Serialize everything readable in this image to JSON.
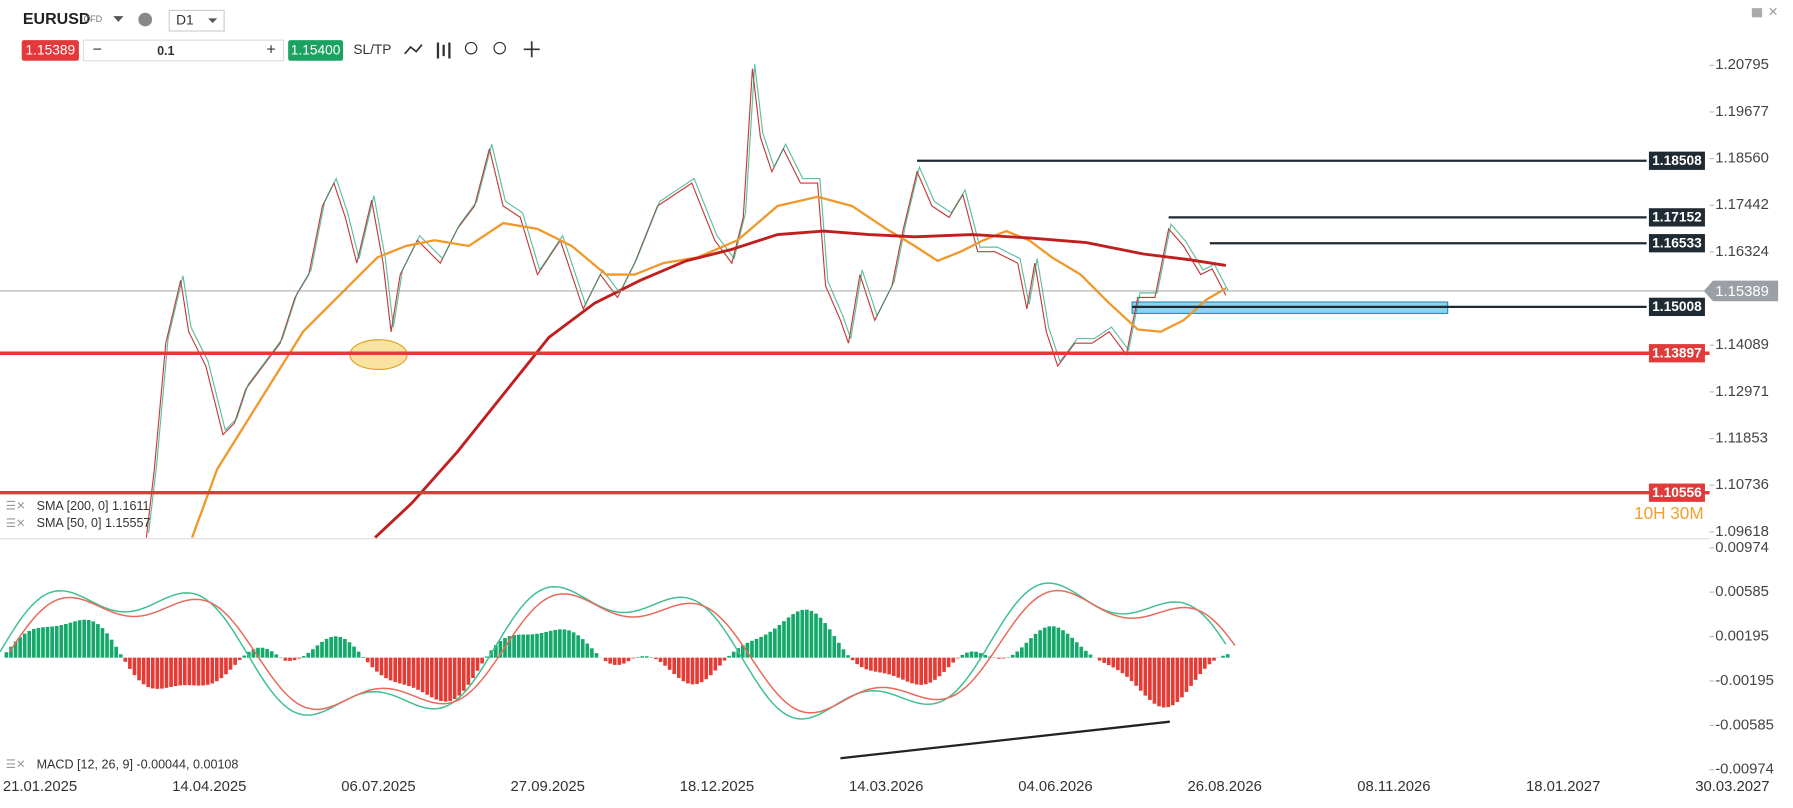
{
  "header": {
    "symbol": "EURUSD",
    "symbol_type": "CFD",
    "timeframe": "D1",
    "sell_price": "1.15389",
    "quantity": "0.1",
    "buy_price": "1.15400",
    "sltp": "SL/TP"
  },
  "price_axis": {
    "ylim": [
      1.09618,
      1.20795
    ],
    "yticks": [
      1.20795,
      1.19677,
      {
        "value": 1.1856,
        "label": "1.18560"
      },
      1.17442,
      1.16324,
      1.14089,
      1.12971,
      1.11853,
      1.10736,
      1.09618
    ]
  },
  "current_price": {
    "value": 1.15389,
    "label": "1.15389"
  },
  "levels": [
    {
      "value": 1.18508,
      "color": "#1f2a33"
    },
    {
      "value": 1.17152,
      "color": "#1f2a33"
    },
    {
      "value": 1.16533,
      "color": "#1f2a33"
    },
    {
      "value": 1.15008,
      "color": "#1f2a33"
    },
    {
      "value": 1.13897,
      "color": "#e03a3a"
    },
    {
      "value": 1.10556,
      "color": "#e03a3a"
    }
  ],
  "indicators": [
    "SMA [200, 0] 1.1611",
    "SMA [50, 0] 1.15557"
  ],
  "timer": "10H 30M",
  "macd": {
    "label": "MACD [12, 26, 9] -0.00044, 0.00108",
    "ylim": [
      -0.00974,
      0.00974
    ],
    "yticks": [
      0.00974,
      0.00585,
      0.00195,
      -0.00195,
      -0.00585,
      -0.00974
    ]
  },
  "dates": [
    "21.01.2025",
    "14.04.2025",
    "06.07.2025",
    "27.09.2025",
    "18.12.2025",
    "14.03.2026",
    "04.06.2026",
    "26.08.2026",
    "08.11.2026",
    "18.01.2027",
    "30.03.2027"
  ]
}
